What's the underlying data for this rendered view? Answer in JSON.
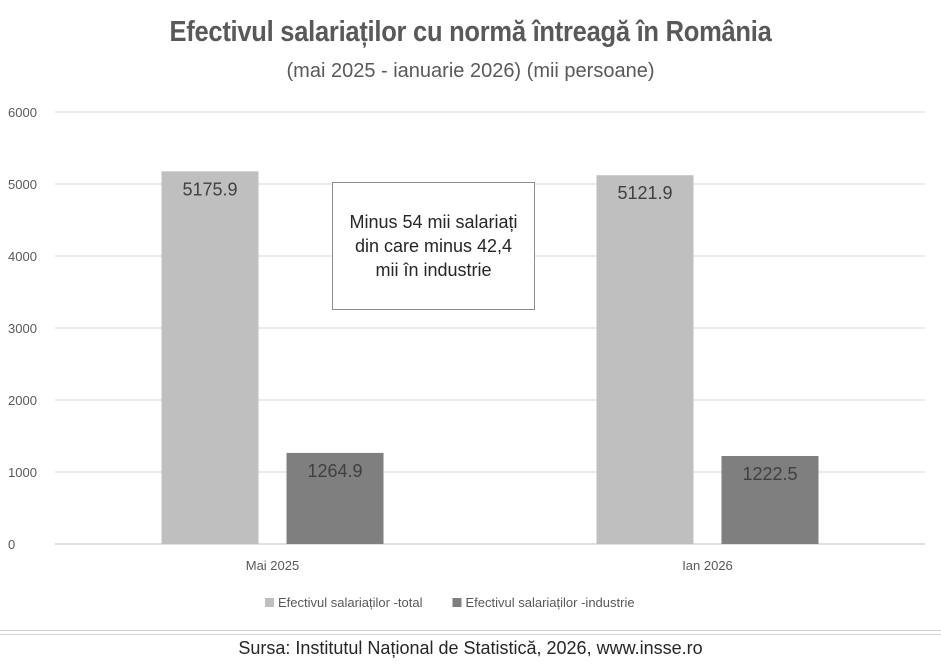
{
  "chart_data": {
    "type": "bar",
    "title": "Efectivul salariaților cu normă întreagă în România",
    "subtitle": "(mai 2025 - ianuarie 2026) (mii persoane)",
    "categories": [
      "Mai 2025",
      "Ian 2026"
    ],
    "series": [
      {
        "name": "Efectivul salariaților -total",
        "values": [
          5175.9,
          5121.9
        ],
        "color": "#bfbfbf"
      },
      {
        "name": "Efectivul salariaților -industrie",
        "values": [
          1264.9,
          1222.5
        ],
        "color": "#7f7f7f"
      }
    ],
    "ylim": [
      0,
      6000
    ],
    "yticks": [
      0,
      1000,
      2000,
      3000,
      4000,
      5000,
      6000
    ],
    "grid": true,
    "legend": "bottom",
    "annotation": "Minus 54 mii salariați din care minus 42,4 mii în industrie"
  },
  "source": "Sursa: Institutul Național de Statistică, 2026, www.insse.ro"
}
